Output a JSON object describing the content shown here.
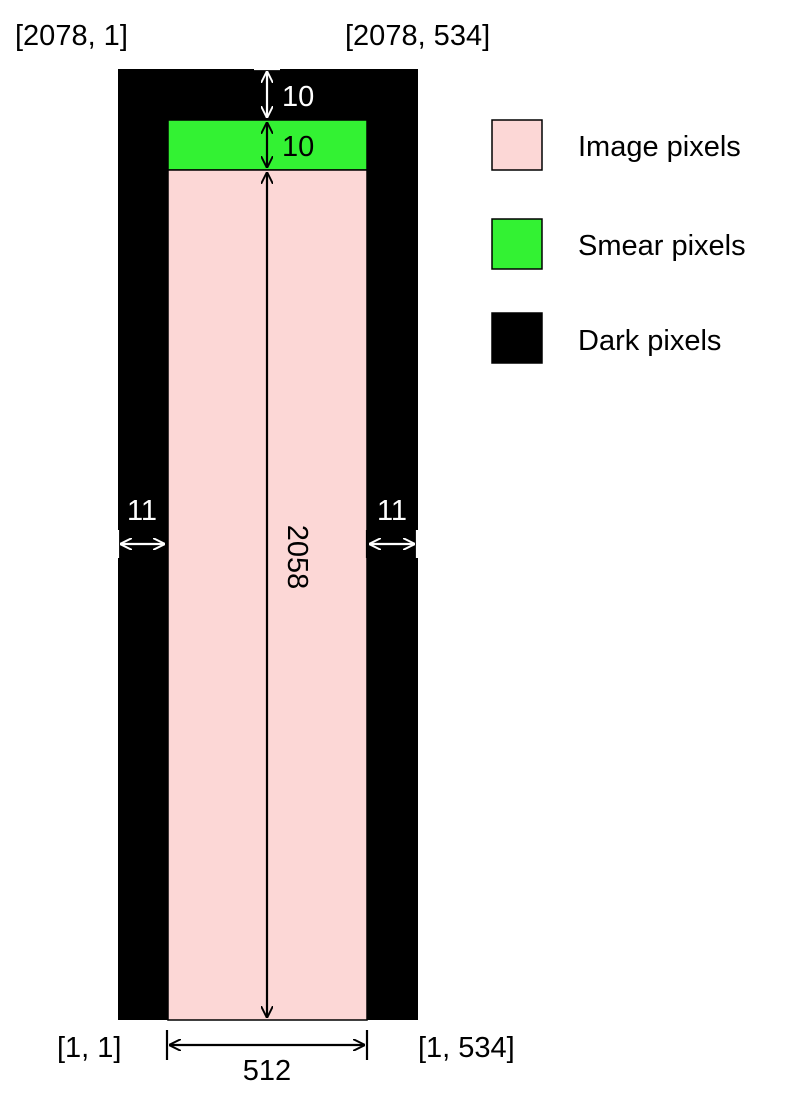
{
  "corners": {
    "top_left": "[2078, 1]",
    "top_right": "[2078, 534]",
    "bottom_left": "[1, 1]",
    "bottom_right": "[1, 534]"
  },
  "dimensions": {
    "top_dark_rows": "10",
    "smear_rows": "10",
    "image_rows": "2058",
    "left_dark_cols": "11",
    "right_dark_cols": "11",
    "image_cols": "512"
  },
  "legend": {
    "items": [
      {
        "label": "Image pixels",
        "color": "#fcd7d6"
      },
      {
        "label": "Smear pixels",
        "color": "#33f233"
      },
      {
        "label": "Dark pixels",
        "color": "#000000"
      }
    ]
  },
  "colors": {
    "image": "#fcd7d6",
    "smear": "#33f233",
    "dark": "#000000"
  }
}
